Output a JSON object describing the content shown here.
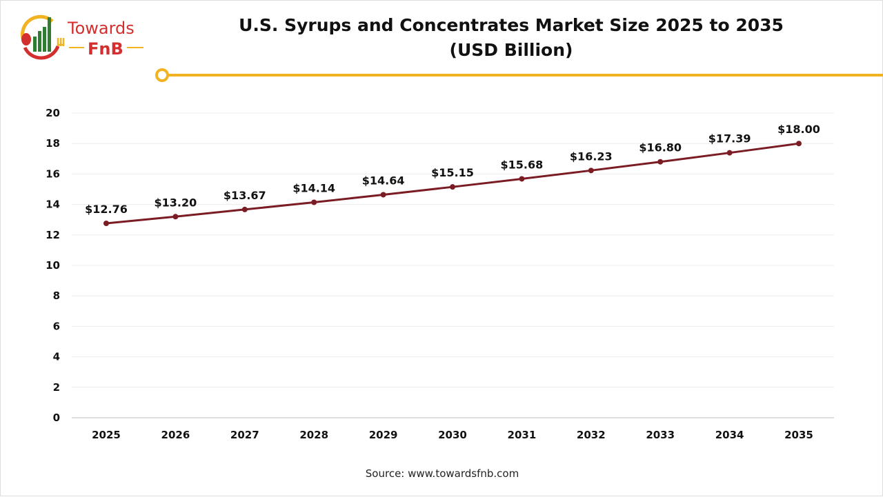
{
  "brand": {
    "name_line1": "Towards",
    "name_line2": "FnB"
  },
  "title_line1": "U.S. Syrups and Concentrates Market Size 2025 to 2035",
  "title_line2": "(USD Billion)",
  "source": "Source: www.towardsfnb.com",
  "colors": {
    "line": "#7b1c24",
    "accent": "#f2b322",
    "brand_red": "#d32f2f",
    "brand_green": "#2e7d32"
  },
  "chart_data": {
    "type": "line",
    "title": "U.S. Syrups and Concentrates Market Size 2025 to 2035 (USD Billion)",
    "categories": [
      "2025",
      "2026",
      "2027",
      "2028",
      "2029",
      "2030",
      "2031",
      "2032",
      "2033",
      "2034",
      "2035"
    ],
    "series": [
      {
        "values": [
          12.76,
          13.2,
          13.67,
          14.14,
          14.64,
          15.15,
          15.68,
          16.23,
          16.8,
          17.39,
          18.0
        ]
      }
    ],
    "data_labels": [
      "$12.76",
      "$13.20",
      "$13.67",
      "$14.14",
      "$14.64",
      "$15.15",
      "$15.68",
      "$16.23",
      "$16.80",
      "$17.39",
      "$18.00"
    ],
    "yticks": [
      "0",
      "2",
      "4",
      "6",
      "8",
      "10",
      "12",
      "14",
      "16",
      "18",
      "20"
    ],
    "ylim": [
      0,
      20
    ],
    "grid": true,
    "legend": "none"
  }
}
